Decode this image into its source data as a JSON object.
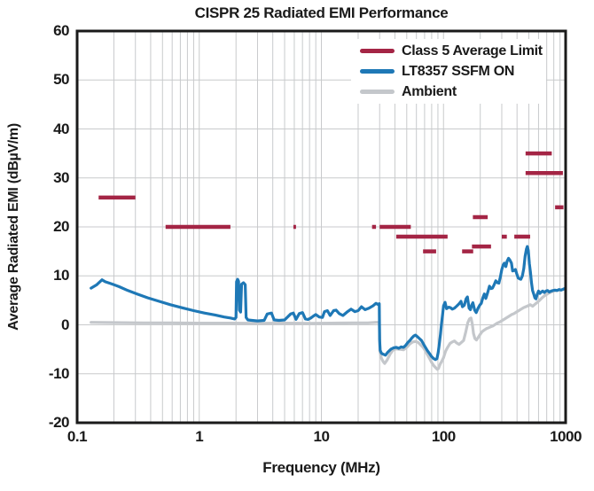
{
  "chart_data": {
    "type": "line",
    "title": "CISPR 25 Radiated EMI Performance",
    "xlabel": "Frequency (MHz)",
    "ylabel": "Average Radiated EMI (dBµV/m)",
    "x_axis": {
      "scale": "log",
      "range": [
        0.1,
        1000
      ],
      "ticks": [
        0.1,
        1,
        10,
        100,
        1000
      ],
      "tick_labels": [
        "0.1",
        "1",
        "10",
        "100",
        "1000"
      ]
    },
    "y_axis": {
      "scale": "linear",
      "range": [
        -20,
        60
      ],
      "ticks": [
        -20,
        -10,
        0,
        10,
        20,
        30,
        40,
        50,
        60
      ],
      "tick_labels": [
        "-20",
        "-10",
        "0",
        "10",
        "20",
        "30",
        "40",
        "50",
        "60"
      ]
    },
    "grid": true,
    "legend_position": "top-right",
    "colors": {
      "limit": "#A42545",
      "ssfm": "#1E78B6",
      "ambient": "#C4C7CB",
      "gridline": "#C8CACC",
      "frame": "#1a1a1a"
    },
    "legend": [
      {
        "label": "Class 5 Average Limit",
        "series": "limit"
      },
      {
        "label": "LT8357 SSFM ON",
        "series": "ssfm"
      },
      {
        "label": "Ambient",
        "series": "ambient"
      }
    ],
    "limit_segments_mhz_dbuv": [
      [
        0.15,
        0.3,
        26
      ],
      [
        0.53,
        1.8,
        20
      ],
      [
        5.9,
        6.2,
        20
      ],
      [
        26,
        28,
        20
      ],
      [
        30,
        54,
        20
      ],
      [
        41,
        108,
        18
      ],
      [
        68,
        87,
        15
      ],
      [
        142,
        175,
        15
      ],
      [
        171,
        245,
        16
      ],
      [
        174,
        230,
        22
      ],
      [
        300,
        330,
        18
      ],
      [
        380,
        512,
        18
      ],
      [
        470,
        770,
        35
      ],
      [
        470,
        950,
        31
      ],
      [
        820,
        960,
        24
      ]
    ],
    "series": [
      {
        "name": "Ambient",
        "color_key": "ambient",
        "points": [
          [
            0.13,
            0.5
          ],
          [
            0.2,
            0.45
          ],
          [
            0.35,
            0.4
          ],
          [
            0.6,
            0.4
          ],
          [
            1.0,
            0.35
          ],
          [
            1.8,
            0.35
          ],
          [
            3,
            0.3
          ],
          [
            5,
            0.35
          ],
          [
            8,
            0.3
          ],
          [
            12,
            0.35
          ],
          [
            18,
            0.4
          ],
          [
            24,
            0.4
          ],
          [
            28,
            0.5
          ],
          [
            29.8,
            0.5
          ],
          [
            30.2,
            -5.5
          ],
          [
            31.0,
            -6.8
          ],
          [
            32.0,
            -7.5
          ],
          [
            33.0,
            -7.9
          ],
          [
            34.5,
            -7.2
          ],
          [
            36.5,
            -6.0
          ],
          [
            38.5,
            -5.2
          ],
          [
            41,
            -4.9
          ],
          [
            44,
            -5.0
          ],
          [
            47,
            -5.1
          ],
          [
            50,
            -4.6
          ],
          [
            53,
            -3.9
          ],
          [
            56,
            -3.5
          ],
          [
            59,
            -3.4
          ],
          [
            62,
            -3.6
          ],
          [
            65,
            -4.1
          ],
          [
            68,
            -4.6
          ],
          [
            71,
            -5.3
          ],
          [
            74,
            -6.1
          ],
          [
            77,
            -6.9
          ],
          [
            80,
            -7.7
          ],
          [
            83,
            -8.3
          ],
          [
            86,
            -8.7
          ],
          [
            89,
            -9.1
          ],
          [
            91,
            -8.9
          ],
          [
            94,
            -8.0
          ],
          [
            97,
            -7.4
          ],
          [
            100,
            -6.7
          ],
          [
            104,
            -5.4
          ],
          [
            108,
            -4.6
          ],
          [
            113,
            -3.8
          ],
          [
            118,
            -3.5
          ],
          [
            123,
            -3.3
          ],
          [
            128,
            -3.7
          ],
          [
            134,
            -4.0
          ],
          [
            140,
            -3.6
          ],
          [
            146,
            -3.2
          ],
          [
            152,
            -1.5
          ],
          [
            158,
            0.4
          ],
          [
            163,
            1.2
          ],
          [
            168,
            1.4
          ],
          [
            172,
            0.2
          ],
          [
            176,
            -1.8
          ],
          [
            181,
            -2.8
          ],
          [
            186,
            -3.1
          ],
          [
            192,
            -2.6
          ],
          [
            199,
            -2.0
          ],
          [
            207,
            -1.4
          ],
          [
            215,
            -1.1
          ],
          [
            224,
            -0.8
          ],
          [
            234,
            -0.6
          ],
          [
            244,
            -0.4
          ],
          [
            255,
            -0.2
          ],
          [
            266,
            0.1
          ],
          [
            278,
            0.4
          ],
          [
            290,
            0.6
          ],
          [
            303,
            0.9
          ],
          [
            317,
            1.2
          ],
          [
            331,
            1.5
          ],
          [
            346,
            1.8
          ],
          [
            362,
            2.1
          ],
          [
            378,
            2.3
          ],
          [
            395,
            2.6
          ],
          [
            413,
            2.9
          ],
          [
            432,
            3.2
          ],
          [
            451,
            3.5
          ],
          [
            471,
            3.7
          ],
          [
            492,
            3.9
          ],
          [
            514,
            4.1
          ],
          [
            537,
            3.8
          ],
          [
            561,
            4.2
          ],
          [
            586,
            4.6
          ],
          [
            612,
            5.0
          ],
          [
            640,
            5.5
          ],
          [
            669,
            5.9
          ],
          [
            699,
            6.2
          ],
          [
            730,
            6.5
          ],
          [
            763,
            6.7
          ],
          [
            797,
            6.9
          ],
          [
            833,
            7.0
          ],
          [
            870,
            7.1
          ],
          [
            910,
            7.1
          ],
          [
            950,
            7.2
          ],
          [
            1000,
            7.3
          ]
        ]
      },
      {
        "name": "LT8357 SSFM ON",
        "color_key": "ssfm",
        "points": [
          [
            0.13,
            7.5
          ],
          [
            0.145,
            8.2
          ],
          [
            0.16,
            9.2
          ],
          [
            0.17,
            8.8
          ],
          [
            0.19,
            8.4
          ],
          [
            0.22,
            7.8
          ],
          [
            0.26,
            7.0
          ],
          [
            0.31,
            6.3
          ],
          [
            0.38,
            5.5
          ],
          [
            0.47,
            4.8
          ],
          [
            0.58,
            4.1
          ],
          [
            0.72,
            3.5
          ],
          [
            0.9,
            2.9
          ],
          [
            1.1,
            2.4
          ],
          [
            1.35,
            2.0
          ],
          [
            1.6,
            1.6
          ],
          [
            1.8,
            1.4
          ],
          [
            1.95,
            1.2
          ],
          [
            2.0,
            1.5
          ],
          [
            2.02,
            8.8
          ],
          [
            2.06,
            9.3
          ],
          [
            2.1,
            8.9
          ],
          [
            2.13,
            3.0
          ],
          [
            2.18,
            2.6
          ],
          [
            2.22,
            8.3
          ],
          [
            2.3,
            8.6
          ],
          [
            2.38,
            8.2
          ],
          [
            2.42,
            1.5
          ],
          [
            2.5,
            1.0
          ],
          [
            2.7,
            0.9
          ],
          [
            3.0,
            0.8
          ],
          [
            3.4,
            0.9
          ],
          [
            3.6,
            2.2
          ],
          [
            3.9,
            2.4
          ],
          [
            4.1,
            1.0
          ],
          [
            4.5,
            0.9
          ],
          [
            5.0,
            1.0
          ],
          [
            5.6,
            2.2
          ],
          [
            5.9,
            2.4
          ],
          [
            6.2,
            1.1
          ],
          [
            6.6,
            2.3
          ],
          [
            7.0,
            2.5
          ],
          [
            7.4,
            1.2
          ],
          [
            7.8,
            1.1
          ],
          [
            8.2,
            1.4
          ],
          [
            8.6,
            1.8
          ],
          [
            9.0,
            2.1
          ],
          [
            9.6,
            1.6
          ],
          [
            10.2,
            1.5
          ],
          [
            10.6,
            2.7
          ],
          [
            11.2,
            2.9
          ],
          [
            11.8,
            1.9
          ],
          [
            12.6,
            2.9
          ],
          [
            13.2,
            3.0
          ],
          [
            14.0,
            2.3
          ],
          [
            15.0,
            1.9
          ],
          [
            16.2,
            2.6
          ],
          [
            17.5,
            3.2
          ],
          [
            18.8,
            2.7
          ],
          [
            20.0,
            2.9
          ],
          [
            21.3,
            3.7
          ],
          [
            22.8,
            3.1
          ],
          [
            24.5,
            3.4
          ],
          [
            26.5,
            3.9
          ],
          [
            28.0,
            4.4
          ],
          [
            29.3,
            4.1
          ],
          [
            29.8,
            4.3
          ],
          [
            30.0,
            -3.0
          ],
          [
            30.3,
            -5.2
          ],
          [
            31,
            -5.8
          ],
          [
            32,
            -6.0
          ],
          [
            33.5,
            -6.2
          ],
          [
            35,
            -5.6
          ],
          [
            37,
            -5.0
          ],
          [
            39,
            -4.7
          ],
          [
            41,
            -4.6
          ],
          [
            43,
            -4.8
          ],
          [
            45,
            -4.5
          ],
          [
            47,
            -4.6
          ],
          [
            49,
            -4.2
          ],
          [
            51,
            -3.6
          ],
          [
            53,
            -3.2
          ],
          [
            55,
            -2.7
          ],
          [
            57,
            -2.3
          ],
          [
            59,
            -2.1
          ],
          [
            61,
            -2.4
          ],
          [
            63.5,
            -2.8
          ],
          [
            66,
            -3.2
          ],
          [
            68.5,
            -3.9
          ],
          [
            71,
            -4.6
          ],
          [
            74,
            -5.3
          ],
          [
            77,
            -5.9
          ],
          [
            80,
            -6.5
          ],
          [
            83,
            -6.9
          ],
          [
            86,
            -7.1
          ],
          [
            88.5,
            -6.9
          ],
          [
            90.5,
            -5.6
          ],
          [
            92.5,
            -3.8
          ],
          [
            94.5,
            -1.8
          ],
          [
            96.5,
            0.4
          ],
          [
            98.5,
            2.2
          ],
          [
            100,
            3.9
          ],
          [
            103,
            4.6
          ],
          [
            106,
            3.3
          ],
          [
            110,
            3.6
          ],
          [
            114,
            3.5
          ],
          [
            118,
            3.2
          ],
          [
            123,
            3.4
          ],
          [
            128,
            3.8
          ],
          [
            134,
            4.3
          ],
          [
            139,
            4.8
          ],
          [
            143,
            3.7
          ],
          [
            148,
            4.0
          ],
          [
            153,
            5.3
          ],
          [
            157,
            5.7
          ],
          [
            162,
            3.4
          ],
          [
            166,
            3.1
          ],
          [
            170,
            4.0
          ],
          [
            174,
            4.5
          ],
          [
            180,
            3.0
          ],
          [
            185,
            2.5
          ],
          [
            192,
            3.4
          ],
          [
            198,
            4.0
          ],
          [
            204,
            4.4
          ],
          [
            210,
            5.5
          ],
          [
            216,
            6.3
          ],
          [
            222,
            5.4
          ],
          [
            230,
            6.6
          ],
          [
            238,
            7.9
          ],
          [
            245,
            7.4
          ],
          [
            252,
            7.5
          ],
          [
            260,
            8.2
          ],
          [
            268,
            9.0
          ],
          [
            276,
            8.6
          ],
          [
            284,
            8.5
          ],
          [
            292,
            9.8
          ],
          [
            300,
            11.3
          ],
          [
            308,
            12.2
          ],
          [
            315,
            12.6
          ],
          [
            324,
            11.9
          ],
          [
            332,
            13.0
          ],
          [
            341,
            13.6
          ],
          [
            350,
            13.2
          ],
          [
            360,
            12.6
          ],
          [
            368,
            11.0
          ],
          [
            378,
            11.1
          ],
          [
            388,
            11.3
          ],
          [
            398,
            10.4
          ],
          [
            408,
            9.6
          ],
          [
            419,
            9.4
          ],
          [
            430,
            9.3
          ],
          [
            442,
            10.0
          ],
          [
            454,
            11.5
          ],
          [
            466,
            14.0
          ],
          [
            478,
            15.5
          ],
          [
            486,
            16.0
          ],
          [
            495,
            15.2
          ],
          [
            505,
            12.5
          ],
          [
            515,
            10.8
          ],
          [
            525,
            8.6
          ],
          [
            536,
            7.0
          ],
          [
            548,
            6.3
          ],
          [
            560,
            5.5
          ],
          [
            572,
            5.3
          ],
          [
            585,
            6.2
          ],
          [
            600,
            6.9
          ],
          [
            615,
            6.4
          ],
          [
            632,
            6.7
          ],
          [
            650,
            6.9
          ],
          [
            670,
            6.6
          ],
          [
            690,
            6.9
          ],
          [
            712,
            7.0
          ],
          [
            735,
            6.7
          ],
          [
            760,
            6.9
          ],
          [
            788,
            7.0
          ],
          [
            818,
            7.1
          ],
          [
            850,
            7.0
          ],
          [
            884,
            7.2
          ],
          [
            920,
            7.1
          ],
          [
            958,
            7.3
          ],
          [
            1000,
            7.5
          ]
        ]
      }
    ]
  }
}
